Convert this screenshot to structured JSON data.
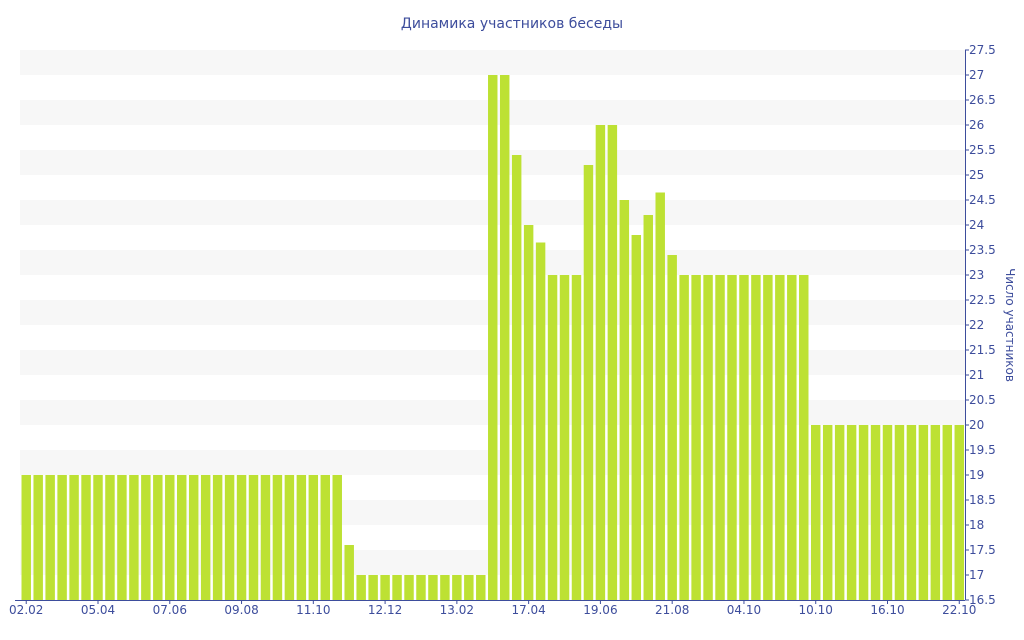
{
  "chart_data": {
    "type": "bar",
    "title": "Динамика участников беседы",
    "xlabel": "",
    "ylabel": "Число участников",
    "ylim": [
      16.5,
      27.5
    ],
    "ystep": 0.5,
    "y_axis_position": "right",
    "grid": "alternating horizontal bands",
    "bar_color": "#bde133",
    "axis_color": "#3d4d9c",
    "band_color": "#f7f7f7",
    "x_tick_labels": [
      "02.02",
      "05.04",
      "07.06",
      "09.08",
      "11.10",
      "12.12",
      "13.02",
      "17.04",
      "19.06",
      "21.08",
      "04.10",
      "10.10",
      "16.10",
      "22.10"
    ],
    "x_tick_every": 6,
    "values": [
      19,
      19,
      19,
      19,
      19,
      19,
      19,
      19,
      19,
      19,
      19,
      19,
      19,
      19,
      19,
      19,
      19,
      19,
      19,
      19,
      19,
      19,
      19,
      19,
      19,
      19,
      19,
      17.6,
      17,
      17,
      17,
      17,
      17,
      17,
      17,
      17,
      17,
      17,
      17,
      27,
      27,
      25.4,
      24,
      23.65,
      23,
      23,
      23,
      25.2,
      26,
      26,
      24.5,
      23.8,
      24.2,
      24.65,
      23.4,
      23,
      23,
      23,
      23,
      23,
      23,
      23,
      23,
      23,
      23,
      23,
      20,
      20,
      20,
      20,
      20,
      20,
      20,
      20,
      20,
      20,
      20,
      20,
      20
    ]
  }
}
